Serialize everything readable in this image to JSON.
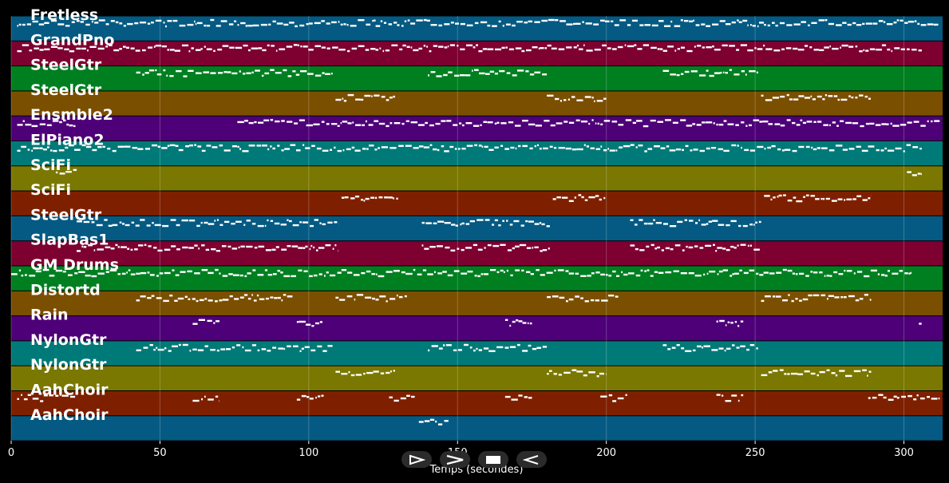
{
  "chart_data": {
    "type": "piano-roll",
    "xlabel": "Temps (secondes)",
    "xlim": [
      0,
      313
    ],
    "xticks": [
      0,
      50,
      100,
      150,
      200,
      250,
      300
    ],
    "grid": true,
    "tracks": [
      {
        "name": "Fretless",
        "color": "#045a82",
        "activity": [
          [
            2,
            312
          ]
        ]
      },
      {
        "name": "GrandPno",
        "color": "#7d0030",
        "activity": [
          [
            2,
            306
          ]
        ]
      },
      {
        "name": "SteelGtr",
        "color": "#007f20",
        "activity": [
          [
            42,
            108
          ],
          [
            140,
            180
          ],
          [
            219,
            251
          ]
        ]
      },
      {
        "name": "SteelGtr",
        "color": "#7b4f00",
        "activity": [
          [
            109,
            129
          ],
          [
            180,
            200
          ],
          [
            252,
            289
          ]
        ]
      },
      {
        "name": "Ensmble2",
        "color": "#4e0078",
        "activity": [
          [
            2,
            22
          ],
          [
            76,
            312
          ]
        ]
      },
      {
        "name": "ElPiano2",
        "color": "#007a78",
        "activity": [
          [
            2,
            306
          ]
        ]
      },
      {
        "name": "SciFi",
        "color": "#7a7800",
        "activity": [
          [
            15,
            22
          ],
          [
            301,
            306
          ]
        ]
      },
      {
        "name": "SciFi",
        "color": "#7e2000",
        "activity": [
          [
            111,
            130
          ],
          [
            182,
            200
          ],
          [
            253,
            289
          ]
        ]
      },
      {
        "name": "SteelGtr",
        "color": "#045a82",
        "activity": [
          [
            22,
            110
          ],
          [
            138,
            181
          ],
          [
            208,
            252
          ]
        ]
      },
      {
        "name": "SlapBas1",
        "color": "#7d0030",
        "activity": [
          [
            22,
            110
          ],
          [
            138,
            181
          ],
          [
            208,
            252
          ]
        ]
      },
      {
        "name": "GM Drums",
        "color": "#007f20",
        "activity": [
          [
            0,
            303
          ]
        ]
      },
      {
        "name": "Distortd",
        "color": "#7b4f00",
        "activity": [
          [
            42,
            95
          ],
          [
            109,
            133
          ],
          [
            180,
            204
          ],
          [
            252,
            289
          ]
        ]
      },
      {
        "name": "Rain",
        "color": "#4e0078",
        "activity": [
          [
            61,
            70
          ],
          [
            96,
            105
          ],
          [
            166,
            175
          ],
          [
            237,
            246
          ],
          [
            305,
            306
          ]
        ]
      },
      {
        "name": "NylonGtr",
        "color": "#007a78",
        "activity": [
          [
            42,
            108
          ],
          [
            140,
            180
          ],
          [
            219,
            251
          ]
        ]
      },
      {
        "name": "NylonGtr",
        "color": "#7a7800",
        "activity": [
          [
            109,
            129
          ],
          [
            180,
            200
          ],
          [
            252,
            289
          ]
        ]
      },
      {
        "name": "AahChoir",
        "color": "#7e2000",
        "activity": [
          [
            2,
            22
          ],
          [
            61,
            70
          ],
          [
            96,
            105
          ],
          [
            127,
            136
          ],
          [
            166,
            175
          ],
          [
            198,
            207
          ],
          [
            237,
            246
          ],
          [
            288,
            312
          ]
        ]
      },
      {
        "name": "AahChoir",
        "color": "#045a82",
        "activity": [
          [
            137,
            147
          ]
        ]
      }
    ]
  },
  "controls": [
    {
      "name": "play-forward",
      "icon": "play-outline-icon"
    },
    {
      "name": "fast-forward",
      "icon": "chevron-right-icon"
    },
    {
      "name": "stop",
      "icon": "stop-icon"
    },
    {
      "name": "reverse",
      "icon": "reverse-outline-icon"
    }
  ]
}
